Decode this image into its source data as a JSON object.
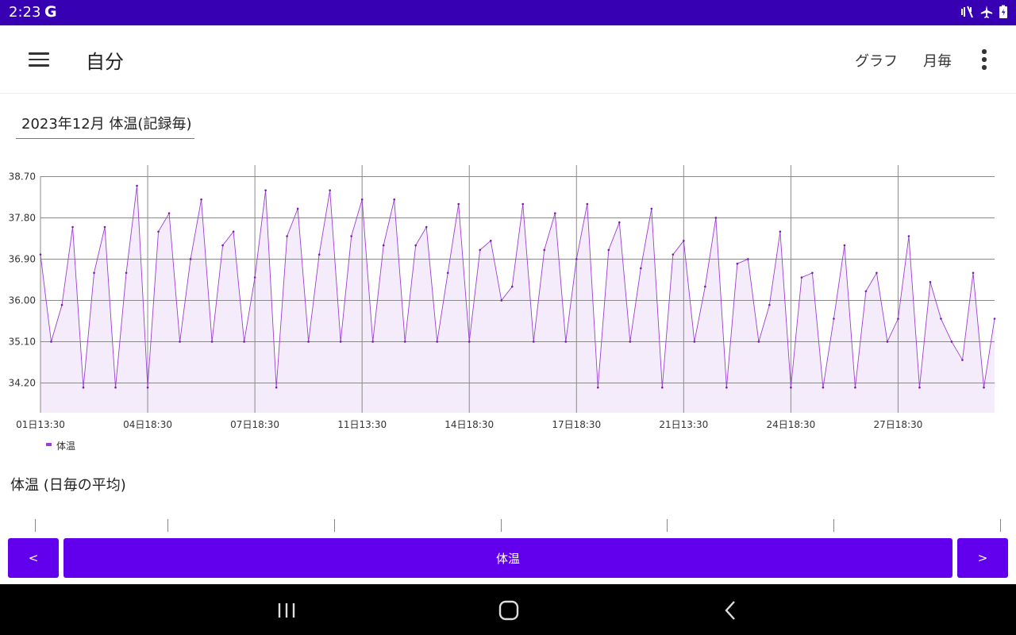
{
  "status_bar": {
    "time": "2:23",
    "g_icon": "G",
    "icons": [
      "vibrate-icon",
      "airplane-mode-icon",
      "battery-charging-icon"
    ]
  },
  "app_bar": {
    "title": "自分",
    "actions": [
      "グラフ",
      "月毎"
    ]
  },
  "selector": {
    "label": "2023年12月 体温(記録毎)"
  },
  "chart_data": {
    "type": "area",
    "title": "",
    "xlabel": "",
    "ylabel": "",
    "ylim": [
      33.55,
      38.95
    ],
    "y_ticks": [
      "38.70",
      "37.80",
      "36.90",
      "36.00",
      "35.10",
      "34.20"
    ],
    "x_ticks": [
      {
        "label": "01日13:30",
        "x": 0
      },
      {
        "label": "04日18:30",
        "x": 10
      },
      {
        "label": "07日18:30",
        "x": 20
      },
      {
        "label": "11日13:30",
        "x": 30
      },
      {
        "label": "14日18:30",
        "x": 40
      },
      {
        "label": "17日18:30",
        "x": 50
      },
      {
        "label": "21日13:30",
        "x": 60
      },
      {
        "label": "24日18:30",
        "x": 70
      },
      {
        "label": "27日18:30",
        "x": 80
      }
    ],
    "x_range": [
      0,
      89
    ],
    "grid": true,
    "legend": "bottom-left",
    "line_color": "#9c3fd6",
    "fill_color": "#f4ecfa",
    "series": [
      {
        "name": "体温",
        "values": [
          37.0,
          35.1,
          35.9,
          37.6,
          34.1,
          36.6,
          37.6,
          34.1,
          36.6,
          38.5,
          34.1,
          37.5,
          37.9,
          35.1,
          36.9,
          38.2,
          35.1,
          37.2,
          37.5,
          35.1,
          36.5,
          38.4,
          34.1,
          37.4,
          38.0,
          35.1,
          37.0,
          38.4,
          35.1,
          37.4,
          38.2,
          35.1,
          37.2,
          38.2,
          35.1,
          37.2,
          37.6,
          35.1,
          36.6,
          38.1,
          35.1,
          37.1,
          37.3,
          36.0,
          36.3,
          38.1,
          35.1,
          37.1,
          37.9,
          35.1,
          36.9,
          38.1,
          34.1,
          37.1,
          37.7,
          35.1,
          36.7,
          38.0,
          34.1,
          37.0,
          37.3,
          35.1,
          36.3,
          37.8,
          34.1,
          36.8,
          36.9,
          35.1,
          35.9,
          37.5,
          34.1,
          36.5,
          36.6,
          34.1,
          35.6,
          37.2,
          34.1,
          36.2,
          36.6,
          35.1,
          35.6,
          37.4,
          34.1,
          36.4,
          35.6,
          35.1,
          34.7,
          36.6,
          34.1,
          35.6
        ]
      }
    ]
  },
  "section2": {
    "title": "体温 (日毎の平均)"
  },
  "bottom_buttons": {
    "prev": "<",
    "center": "体温",
    "next": ">"
  }
}
